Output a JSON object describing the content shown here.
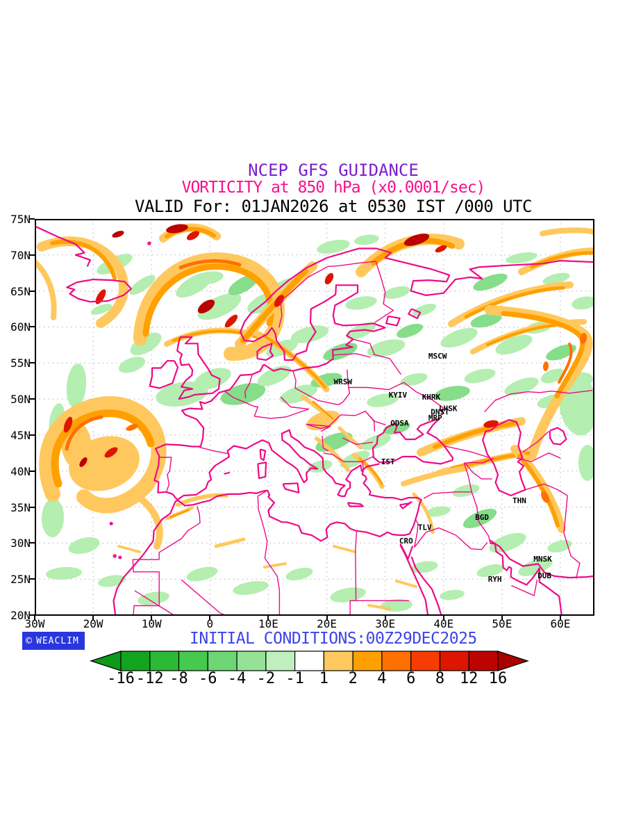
{
  "titles": {
    "line1": "NCEP GFS GUIDANCE",
    "line2": "VORTICITY at 850 hPa (x0.0001/sec)",
    "line3": "VALID For: 01JAN2026 at 0530 IST /000 UTC"
  },
  "colors": {
    "title1": "#7a1fd0",
    "title2": "#fb0f8e",
    "title3": "#000000",
    "init_conditions": "#3d43e8",
    "coastline": "#ee0a86",
    "logo_bg": "#2936dd",
    "logo_fg": "#ffffff",
    "grid": "#b0b0b0",
    "fill_green_light": "#b4eeb0",
    "fill_green_medium": "#86dd8a",
    "fill_orange_pale": "#ffc85e",
    "fill_orange": "#ff9f00",
    "fill_orange_dark": "#ff7000",
    "fill_red": "#dd1600",
    "fill_dark_red": "#bb0200"
  },
  "axis": {
    "lat_labels": [
      "75N",
      "70N",
      "65N",
      "60N",
      "55N",
      "50N",
      "45N",
      "40N",
      "35N",
      "30N",
      "25N",
      "20N"
    ],
    "lon_labels": [
      "30W",
      "20W",
      "10W",
      "0",
      "10E",
      "20E",
      "30E",
      "40E",
      "50E",
      "60E"
    ]
  },
  "cities": [
    {
      "label": "MSCW",
      "lon": 37.4,
      "lat": 56.1
    },
    {
      "label": "WRSW",
      "lon": 21.2,
      "lat": 52.5
    },
    {
      "label": "KYIV",
      "lon": 30.6,
      "lat": 50.7
    },
    {
      "label": "KHRK",
      "lon": 36.3,
      "lat": 50.4
    },
    {
      "label": "LHSK",
      "lon": 39.2,
      "lat": 48.8
    },
    {
      "label": "DNST",
      "lon": 37.8,
      "lat": 48.3
    },
    {
      "label": "MRP",
      "lon": 37.4,
      "lat": 47.5
    },
    {
      "label": "ODSA",
      "lon": 30.9,
      "lat": 46.8
    },
    {
      "label": "IST",
      "lon": 29.3,
      "lat": 41.4
    },
    {
      "label": "THN",
      "lon": 51.8,
      "lat": 36.0
    },
    {
      "label": "BGD",
      "lon": 45.4,
      "lat": 33.7
    },
    {
      "label": "TLV",
      "lon": 35.6,
      "lat": 32.3
    },
    {
      "label": "CRO",
      "lon": 32.4,
      "lat": 30.4
    },
    {
      "label": "MNSK",
      "lon": 55.4,
      "lat": 27.9
    },
    {
      "label": "RYH",
      "lon": 47.6,
      "lat": 25.1
    },
    {
      "label": "DUB",
      "lon": 56.1,
      "lat": 25.6
    }
  ],
  "footer": {
    "copyright_symbol": "©",
    "logo_text": "WEACLIM",
    "initial_conditions": "INITIAL CONDITIONS:00Z29DEC2025"
  },
  "colorbar": {
    "labels": [
      "-16",
      "-12",
      "-8",
      "-6",
      "-4",
      "-2",
      "-1",
      "1",
      "2",
      "4",
      "6",
      "8",
      "12",
      "16"
    ],
    "segment_colors": [
      "#12a41f",
      "#2cba36",
      "#46c94f",
      "#6bd673",
      "#95e297",
      "#bfefbf",
      "#ffffff",
      "#ffc85e",
      "#ff9f00",
      "#ff7000",
      "#f63c00",
      "#dd1600",
      "#bd0300"
    ],
    "left_arrow_color": "#0d9a1a",
    "right_arrow_color": "#ab0000"
  },
  "chart_data": {
    "type": "heatmap",
    "title": "NCEP GFS GUIDANCE",
    "subtitle": "VORTICITY at 850 hPa (x0.0001/sec)",
    "valid_line": "VALID For: 01JAN2026 at 0530 IST /000 UTC",
    "initial_conditions": "00Z29DEC2025",
    "variable": "relative vorticity",
    "level_hPa": 850,
    "units": "x0.0001/sec",
    "contour_levels": [
      -16,
      -12,
      -8,
      -6,
      -4,
      -2,
      -1,
      1,
      2,
      4,
      6,
      8,
      12,
      16
    ],
    "lon_range_deg": [
      -30,
      65.7
    ],
    "lat_range_deg": [
      20,
      75
    ],
    "grid": "dotted, 10 deg lon x 5 deg lat",
    "legend_position": "bottom colorbar with end arrows"
  }
}
